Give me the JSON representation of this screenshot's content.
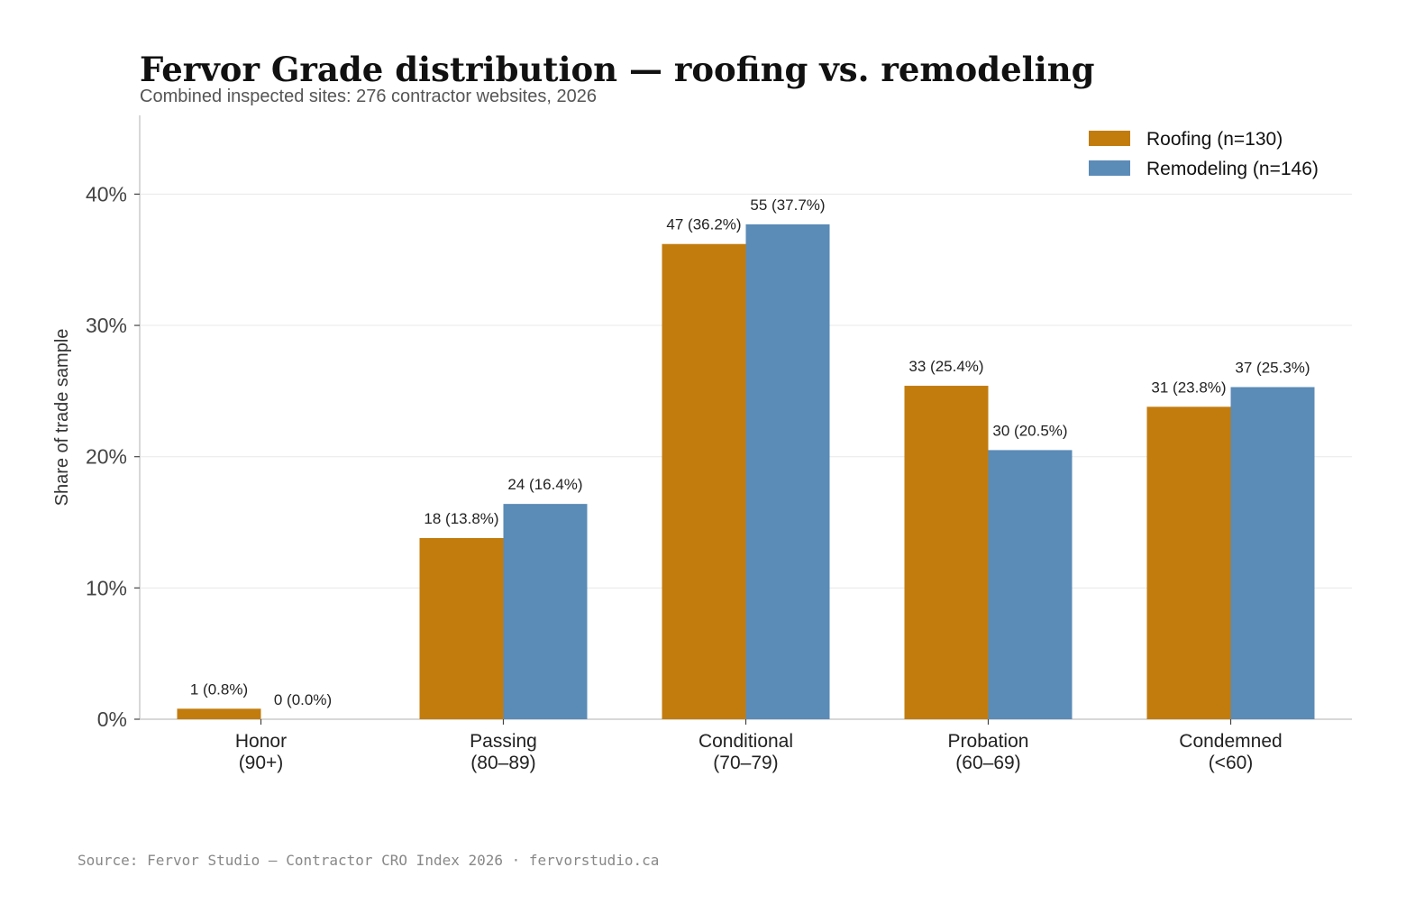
{
  "chart_data": {
    "type": "bar",
    "title": "Fervor Grade distribution — roofing vs. remodeling",
    "subtitle": "Combined inspected sites: 276 contractor websites, 2026",
    "ylabel": "Share of trade sample",
    "xlabel": "",
    "ylim": [
      0,
      46
    ],
    "yticks": [
      0,
      10,
      20,
      30,
      40
    ],
    "ytick_labels": [
      "0%",
      "10%",
      "20%",
      "30%",
      "40%"
    ],
    "grid": true,
    "legend_position": "top-right",
    "categories": [
      [
        "Honor",
        "(90+)"
      ],
      [
        "Passing",
        "(80–89)"
      ],
      [
        "Conditional",
        "(70–79)"
      ],
      [
        "Probation",
        "(60–69)"
      ],
      [
        "Condemned",
        "(<60)"
      ]
    ],
    "series": [
      {
        "name": "Roofing (n=130)",
        "color": "#C27C0E",
        "values": [
          0.8,
          13.8,
          36.2,
          25.4,
          23.8
        ],
        "labels": [
          "1 (0.8%)",
          "18 (13.8%)",
          "47 (36.2%)",
          "33 (25.4%)",
          "31 (23.8%)"
        ]
      },
      {
        "name": "Remodeling (n=146)",
        "color": "#5B8BB7",
        "values": [
          0.0,
          16.4,
          37.7,
          20.5,
          25.3
        ],
        "labels": [
          "0 (0.0%)",
          "24 (16.4%)",
          "55 (37.7%)",
          "30 (20.5%)",
          "37 (25.3%)"
        ]
      }
    ]
  },
  "source": "Source: Fervor Studio — Contractor CRO Index 2026 · fervorstudio.ca"
}
